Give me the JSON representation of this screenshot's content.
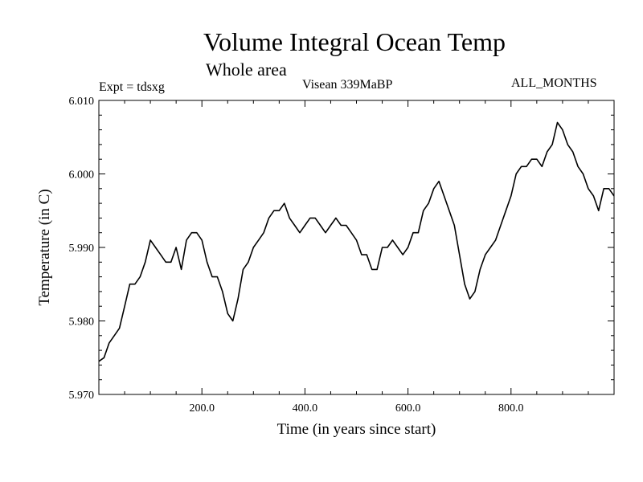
{
  "chart_data": {
    "type": "line",
    "title": "Volume Integral Ocean Temp",
    "subtitle": "Whole area",
    "annotations": {
      "left": "Expt = tdsxg",
      "center": "Visean 339MaBP",
      "right": "ALL_MONTHS"
    },
    "xlabel": "Time (in years since start)",
    "ylabel": "Temperature (in C)",
    "xlim": [
      0,
      1000
    ],
    "ylim": [
      5.97,
      6.01
    ],
    "xticks": [
      200,
      400,
      600,
      800
    ],
    "xtick_labels": [
      "200.0",
      "400.0",
      "600.0",
      "800.0"
    ],
    "yticks": [
      5.97,
      5.98,
      5.99,
      6.0,
      6.01
    ],
    "ytick_labels": [
      "5.970",
      "5.980",
      "5.990",
      "6.000",
      "6.010"
    ],
    "grid": false,
    "series": [
      {
        "name": "Temperature",
        "x": [
          0,
          10,
          20,
          30,
          40,
          50,
          60,
          70,
          80,
          90,
          100,
          110,
          120,
          130,
          140,
          150,
          160,
          170,
          180,
          190,
          200,
          210,
          220,
          230,
          240,
          250,
          260,
          270,
          280,
          290,
          300,
          310,
          320,
          330,
          340,
          350,
          360,
          370,
          380,
          390,
          400,
          410,
          420,
          430,
          440,
          450,
          460,
          470,
          480,
          490,
          500,
          510,
          520,
          530,
          540,
          550,
          560,
          570,
          580,
          590,
          600,
          610,
          620,
          630,
          640,
          650,
          660,
          670,
          680,
          690,
          700,
          710,
          720,
          730,
          740,
          750,
          760,
          770,
          780,
          790,
          800,
          810,
          820,
          830,
          840,
          850,
          860,
          870,
          880,
          890,
          900,
          910,
          920,
          930,
          940,
          950,
          960,
          970,
          980,
          990,
          1000
        ],
        "values": [
          5.9745,
          5.975,
          5.977,
          5.978,
          5.979,
          5.982,
          5.985,
          5.985,
          5.986,
          5.988,
          5.991,
          5.99,
          5.989,
          5.988,
          5.988,
          5.99,
          5.987,
          5.991,
          5.992,
          5.992,
          5.991,
          5.988,
          5.986,
          5.986,
          5.984,
          5.981,
          5.98,
          5.983,
          5.987,
          5.988,
          5.99,
          5.991,
          5.992,
          5.994,
          5.995,
          5.995,
          5.996,
          5.994,
          5.993,
          5.992,
          5.993,
          5.994,
          5.994,
          5.993,
          5.992,
          5.993,
          5.994,
          5.993,
          5.993,
          5.992,
          5.991,
          5.989,
          5.989,
          5.987,
          5.987,
          5.99,
          5.99,
          5.991,
          5.99,
          5.989,
          5.99,
          5.992,
          5.992,
          5.995,
          5.996,
          5.998,
          5.999,
          5.997,
          5.995,
          5.993,
          5.989,
          5.985,
          5.983,
          5.984,
          5.987,
          5.989,
          5.99,
          5.991,
          5.993,
          5.995,
          5.997,
          6.0,
          6.001,
          6.001,
          6.002,
          6.002,
          6.001,
          6.003,
          6.004,
          6.007,
          6.006,
          6.004,
          6.003,
          6.001,
          6.0,
          5.998,
          5.997,
          5.995,
          5.998,
          5.998,
          5.997
        ]
      }
    ]
  }
}
